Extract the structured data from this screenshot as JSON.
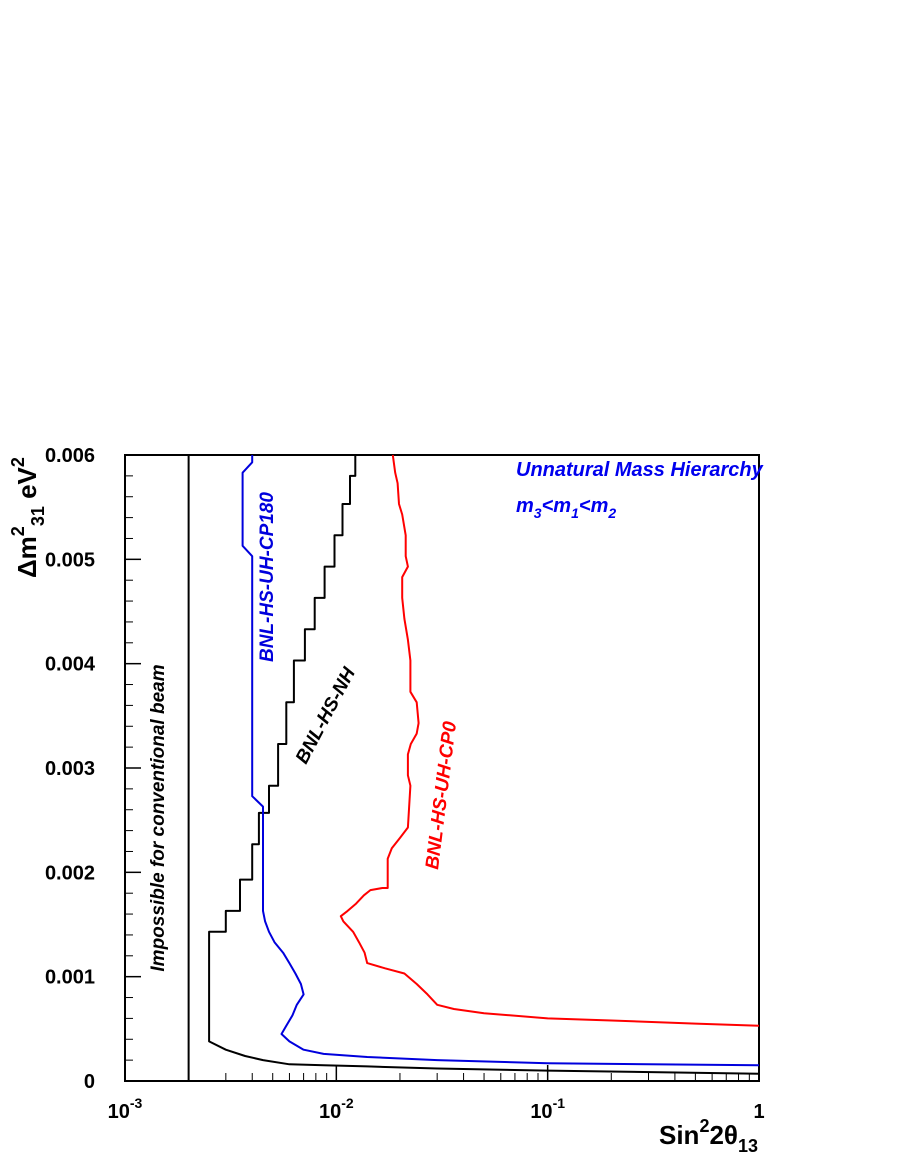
{
  "chart_data": {
    "type": "line",
    "title": "",
    "x_scale": "log",
    "xlim": [
      0.001,
      1
    ],
    "ylim": [
      0,
      0.006
    ],
    "x_ticks": [
      {
        "value": 0.001,
        "base": "10",
        "exp": "-3"
      },
      {
        "value": 0.01,
        "base": "10",
        "exp": "-2"
      },
      {
        "value": 0.1,
        "base": "10",
        "exp": "-1"
      },
      {
        "value": 1,
        "base": "1",
        "exp": ""
      }
    ],
    "y_ticks": [
      {
        "value": 0,
        "label": "0"
      },
      {
        "value": 0.001,
        "label": "0.001"
      },
      {
        "value": 0.002,
        "label": "0.002"
      },
      {
        "value": 0.003,
        "label": "0.003"
      },
      {
        "value": 0.004,
        "label": "0.004"
      },
      {
        "value": 0.005,
        "label": "0.005"
      },
      {
        "value": 0.006,
        "label": "0.006"
      }
    ],
    "xlabel": {
      "base": "Sin",
      "sup": "2",
      "mid": "2θ",
      "sub": "13"
    },
    "ylabel": {
      "a": "Δm",
      "sup1": "2",
      "sub1": "31",
      "b": " eV",
      "sup2": "2"
    },
    "boundary": {
      "x": 0.002,
      "label": "Impossible  for conventional beam"
    },
    "annotation": {
      "line1": "Unnatural Mass Hierarchy",
      "m3": "m",
      "s3": "3",
      "lt1": "<",
      "m1": "m",
      "s1": "1",
      "lt2": "<",
      "m2": "m",
      "s2": "2"
    },
    "series": [
      {
        "name": "BNL-HS-NH",
        "color": "#000000",
        "points": [
          [
            1.0,
            7e-05
          ],
          [
            0.1,
            0.0001
          ],
          [
            0.03,
            0.00012
          ],
          [
            0.014,
            0.00014
          ],
          [
            0.0087,
            0.00015
          ],
          [
            0.006,
            0.00016
          ],
          [
            0.0045,
            0.0002
          ],
          [
            0.0037,
            0.00024
          ],
          [
            0.003,
            0.0003
          ],
          [
            0.0025,
            0.00038
          ],
          [
            0.0025,
            0.00143
          ],
          [
            0.003,
            0.00143
          ],
          [
            0.003,
            0.00163
          ],
          [
            0.0035,
            0.00163
          ],
          [
            0.0035,
            0.00193
          ],
          [
            0.004,
            0.00193
          ],
          [
            0.004,
            0.00227
          ],
          [
            0.0043,
            0.00227
          ],
          [
            0.0043,
            0.00257
          ],
          [
            0.0048,
            0.00257
          ],
          [
            0.0048,
            0.00283
          ],
          [
            0.0053,
            0.00283
          ],
          [
            0.0053,
            0.00323
          ],
          [
            0.0058,
            0.00323
          ],
          [
            0.0058,
            0.00363
          ],
          [
            0.0063,
            0.00363
          ],
          [
            0.0063,
            0.00403
          ],
          [
            0.0071,
            0.00403
          ],
          [
            0.0071,
            0.00433
          ],
          [
            0.0079,
            0.00433
          ],
          [
            0.0079,
            0.00463
          ],
          [
            0.0088,
            0.00463
          ],
          [
            0.0088,
            0.00493
          ],
          [
            0.0098,
            0.00493
          ],
          [
            0.0098,
            0.00523
          ],
          [
            0.0107,
            0.00523
          ],
          [
            0.0107,
            0.00553
          ],
          [
            0.0116,
            0.00553
          ],
          [
            0.0116,
            0.0058
          ],
          [
            0.0123,
            0.0058
          ],
          [
            0.0123,
            0.006
          ]
        ]
      },
      {
        "name": "BNL-HS-UH-CP180",
        "color": "#0000dd",
        "points": [
          [
            1.0,
            0.00015
          ],
          [
            0.1,
            0.00017
          ],
          [
            0.03,
            0.0002
          ],
          [
            0.014,
            0.00023
          ],
          [
            0.0087,
            0.00026
          ],
          [
            0.007,
            0.0003
          ],
          [
            0.006,
            0.00038
          ],
          [
            0.0055,
            0.00045
          ],
          [
            0.0058,
            0.00053
          ],
          [
            0.0062,
            0.00063
          ],
          [
            0.0065,
            0.00073
          ],
          [
            0.007,
            0.00083
          ],
          [
            0.0068,
            0.00093
          ],
          [
            0.0064,
            0.00103
          ],
          [
            0.006,
            0.00113
          ],
          [
            0.0056,
            0.00123
          ],
          [
            0.0051,
            0.00133
          ],
          [
            0.0048,
            0.00143
          ],
          [
            0.0046,
            0.00153
          ],
          [
            0.0045,
            0.00163
          ],
          [
            0.0045,
            0.00263
          ],
          [
            0.004,
            0.00273
          ],
          [
            0.004,
            0.00453
          ],
          [
            0.004,
            0.00503
          ],
          [
            0.0036,
            0.00513
          ],
          [
            0.0036,
            0.00583
          ],
          [
            0.004,
            0.00593
          ],
          [
            0.004,
            0.006
          ]
        ]
      },
      {
        "name": "BNL-HS-UH-CP0",
        "color": "#ff0000",
        "points": [
          [
            1.0,
            0.00053
          ],
          [
            0.5,
            0.00055
          ],
          [
            0.2,
            0.00058
          ],
          [
            0.1,
            0.0006
          ],
          [
            0.05,
            0.00065
          ],
          [
            0.036,
            0.00069
          ],
          [
            0.03,
            0.00073
          ],
          [
            0.027,
            0.00083
          ],
          [
            0.024,
            0.00093
          ],
          [
            0.021,
            0.00103
          ],
          [
            0.017,
            0.00108
          ],
          [
            0.014,
            0.00113
          ],
          [
            0.0136,
            0.00123
          ],
          [
            0.0128,
            0.00133
          ],
          [
            0.012,
            0.00143
          ],
          [
            0.0108,
            0.00153
          ],
          [
            0.0105,
            0.00158
          ],
          [
            0.0113,
            0.00163
          ],
          [
            0.0124,
            0.0017
          ],
          [
            0.0135,
            0.00178
          ],
          [
            0.0145,
            0.00183
          ],
          [
            0.0165,
            0.00185
          ],
          [
            0.0175,
            0.00185
          ],
          [
            0.0175,
            0.00213
          ],
          [
            0.0183,
            0.00223
          ],
          [
            0.02,
            0.00233
          ],
          [
            0.0218,
            0.00243
          ],
          [
            0.0224,
            0.00283
          ],
          [
            0.0218,
            0.00293
          ],
          [
            0.0218,
            0.00313
          ],
          [
            0.0225,
            0.00323
          ],
          [
            0.024,
            0.00333
          ],
          [
            0.0245,
            0.00343
          ],
          [
            0.024,
            0.00363
          ],
          [
            0.0224,
            0.00373
          ],
          [
            0.0224,
            0.00403
          ],
          [
            0.0218,
            0.00423
          ],
          [
            0.021,
            0.00443
          ],
          [
            0.0205,
            0.00463
          ],
          [
            0.0205,
            0.00483
          ],
          [
            0.0218,
            0.00493
          ],
          [
            0.0213,
            0.00503
          ],
          [
            0.0213,
            0.00523
          ],
          [
            0.0205,
            0.00543
          ],
          [
            0.0198,
            0.00553
          ],
          [
            0.0195,
            0.00573
          ],
          [
            0.019,
            0.00583
          ],
          [
            0.0185,
            0.006
          ]
        ]
      }
    ],
    "series_labels": [
      {
        "series": "BNL-HS-NH",
        "text": "BNL-HS-NH"
      },
      {
        "series": "BNL-HS-UH-CP180",
        "text": "BNL-HS-UH-CP180"
      },
      {
        "series": "BNL-HS-UH-CP0",
        "text": "BNL-HS-UH-CP0"
      }
    ]
  }
}
